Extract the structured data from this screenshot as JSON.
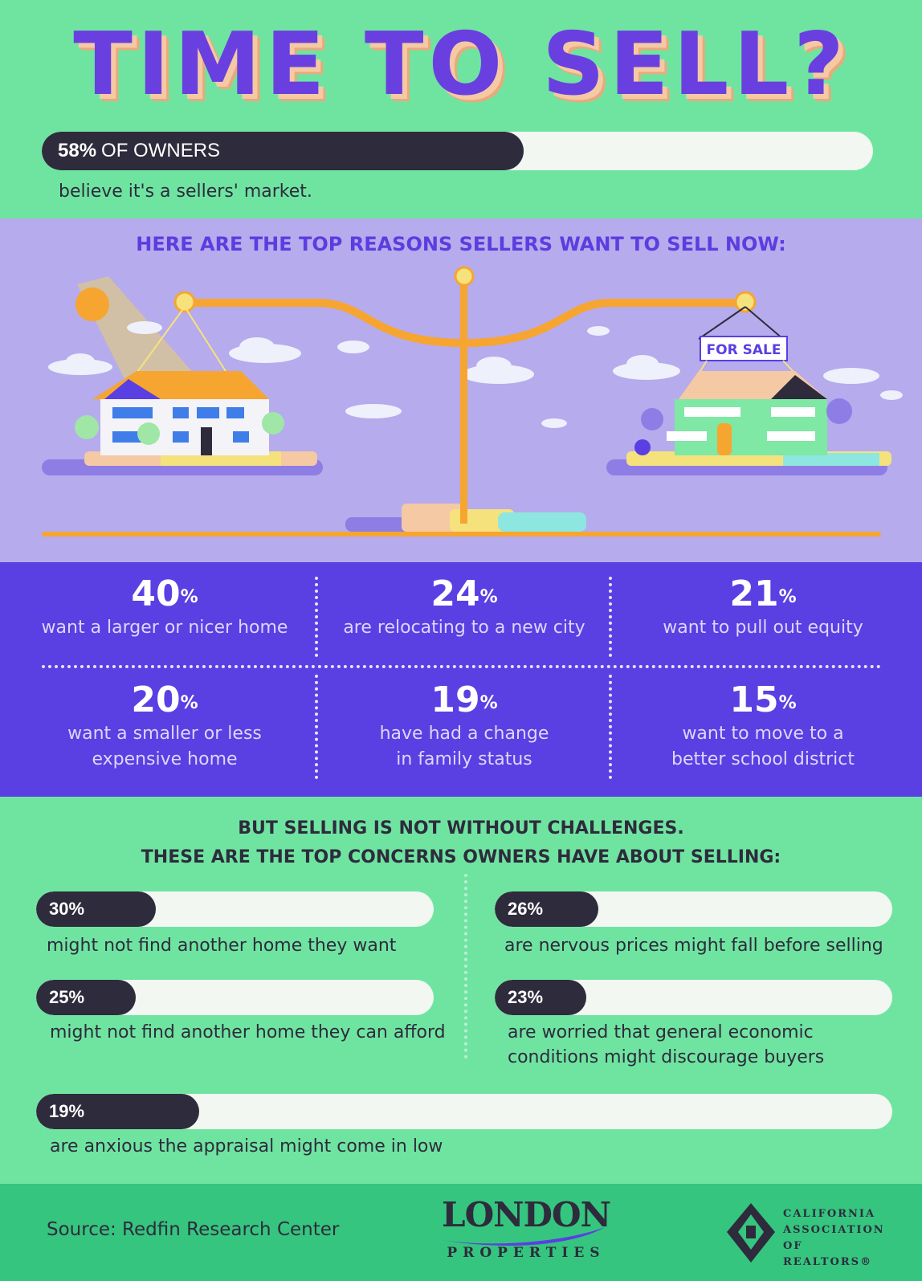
{
  "header": {
    "title": "TIME TO SELL?",
    "owners_pct": "58%",
    "owners_label": "OF OWNERS",
    "owners_fraction": 0.58,
    "owners_sub": "believe it's a sellers' market."
  },
  "reasons": {
    "title": "HERE ARE THE TOP REASONS SELLERS WANT TO SELL NOW:",
    "sign": "FOR SALE",
    "items": [
      {
        "pct": "40",
        "text1": "want a larger or nicer home",
        "text2": ""
      },
      {
        "pct": "24",
        "text1": "are relocating to a new city",
        "text2": ""
      },
      {
        "pct": "21",
        "text1": "want to pull out equity",
        "text2": ""
      },
      {
        "pct": "20",
        "text1": "want a smaller or less",
        "text2": "expensive home"
      },
      {
        "pct": "19",
        "text1": "have had a change",
        "text2": "in family status"
      },
      {
        "pct": "15",
        "text1": "want to move to a",
        "text2": "better school district"
      }
    ],
    "pct_symbol": "%"
  },
  "concerns": {
    "title1": "BUT SELLING IS NOT WITHOUT CHALLENGES.",
    "title2": "THESE ARE THE TOP CONCERNS OWNERS HAVE ABOUT SELLING:",
    "items": [
      {
        "pct": "30%",
        "fraction": 0.3,
        "text1": "might not find another home they want",
        "text2": ""
      },
      {
        "pct": "26%",
        "fraction": 0.26,
        "text1": "are nervous prices might fall before selling",
        "text2": ""
      },
      {
        "pct": "25%",
        "fraction": 0.25,
        "text1": "might not find another home they can afford",
        "text2": ""
      },
      {
        "pct": "23%",
        "fraction": 0.23,
        "text1": "are worried that general economic",
        "text2": "conditions might discourage buyers"
      },
      {
        "pct": "19%",
        "fraction": 0.19,
        "text1": "are anxious the appraisal might come in low",
        "text2": ""
      }
    ]
  },
  "footer": {
    "source": "Source: Redfin Research Center",
    "logo_name": "LONDON",
    "logo_sub": "PROPERTIES",
    "car_line1": "CALIFORNIA",
    "car_line2": "ASSOCIATION",
    "car_line3": "OF REALTORS®"
  },
  "colors": {
    "green": "#6fe4a1",
    "purple": "#5a3fe3",
    "lavender": "#b6abec",
    "dark": "#2e2b3c",
    "orange": "#f7a531"
  }
}
